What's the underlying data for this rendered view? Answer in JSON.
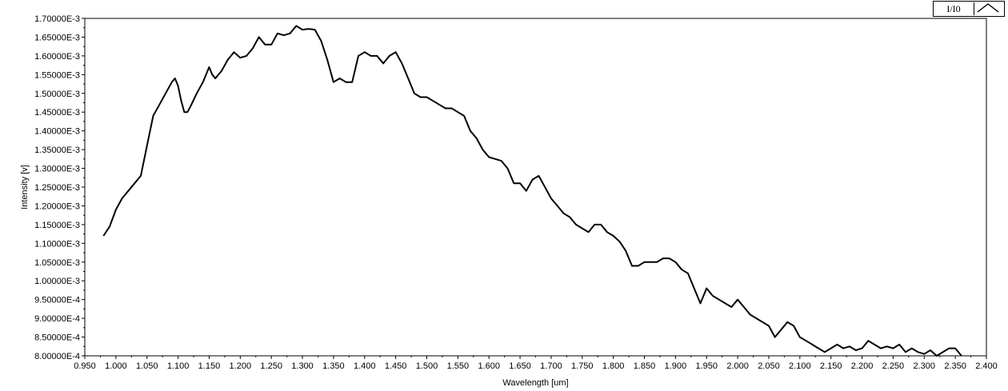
{
  "legend": {
    "series_name": "I/I0"
  },
  "colors": {
    "line": "#000000",
    "plot_background": "#ffffff",
    "frame": "#000000"
  },
  "chart_data": {
    "type": "line",
    "title": "",
    "xlabel": "Wavelength [um]",
    "ylabel": "Intensity [v]",
    "xlim": [
      0.95,
      2.4
    ],
    "ylim": [
      0.0008,
      0.0017
    ],
    "grid": false,
    "legend_position": "top-right",
    "x_ticks": [
      0.95,
      1.0,
      1.05,
      1.1,
      1.15,
      1.2,
      1.25,
      1.3,
      1.35,
      1.4,
      1.45,
      1.5,
      1.55,
      1.6,
      1.65,
      1.7,
      1.75,
      1.8,
      1.85,
      1.9,
      1.95,
      2.0,
      2.05,
      2.1,
      2.15,
      2.2,
      2.25,
      2.3,
      2.35,
      2.4
    ],
    "x_tick_labels": [
      "0.950",
      "1.000",
      "1.050",
      "1.100",
      "1.150",
      "1.200",
      "1.250",
      "1.300",
      "1.350",
      "1.400",
      "1.450",
      "1.500",
      "1.550",
      "1.600",
      "1.650",
      "1.700",
      "1.750",
      "1.800",
      "1.850",
      "1.900",
      "1.950",
      "2.000",
      "2.050",
      "2.100",
      "2.150",
      "2.200",
      "2.250",
      "2.300",
      "2.350",
      "2.400"
    ],
    "y_ticks": [
      0.0008,
      0.00085,
      0.0009,
      0.00095,
      0.001,
      0.00105,
      0.0011,
      0.00115,
      0.0012,
      0.00125,
      0.0013,
      0.00135,
      0.0014,
      0.00145,
      0.0015,
      0.00155,
      0.0016,
      0.00165,
      0.0017
    ],
    "y_tick_labels": [
      "8.00000E-4",
      "8.50000E-4",
      "9.00000E-4",
      "9.50000E-4",
      "1.00000E-3",
      "1.05000E-3",
      "1.10000E-3",
      "1.15000E-3",
      "1.20000E-3",
      "1.25000E-3",
      "1.30000E-3",
      "1.35000E-3",
      "1.40000E-3",
      "1.45000E-3",
      "1.50000E-3",
      "1.55000E-3",
      "1.60000E-3",
      "1.65000E-3",
      "1.70000E-3"
    ],
    "series": [
      {
        "name": "I/I0",
        "x": [
          0.98,
          0.99,
          1.0,
          1.01,
          1.02,
          1.03,
          1.04,
          1.05,
          1.06,
          1.07,
          1.08,
          1.09,
          1.095,
          1.1,
          1.105,
          1.11,
          1.115,
          1.12,
          1.13,
          1.14,
          1.15,
          1.155,
          1.16,
          1.17,
          1.18,
          1.19,
          1.2,
          1.21,
          1.22,
          1.23,
          1.24,
          1.25,
          1.26,
          1.27,
          1.28,
          1.29,
          1.3,
          1.31,
          1.32,
          1.33,
          1.34,
          1.35,
          1.36,
          1.37,
          1.38,
          1.39,
          1.4,
          1.41,
          1.42,
          1.43,
          1.44,
          1.45,
          1.46,
          1.47,
          1.48,
          1.49,
          1.5,
          1.51,
          1.52,
          1.53,
          1.54,
          1.55,
          1.56,
          1.57,
          1.58,
          1.59,
          1.6,
          1.61,
          1.62,
          1.63,
          1.64,
          1.65,
          1.66,
          1.67,
          1.68,
          1.69,
          1.7,
          1.71,
          1.72,
          1.73,
          1.74,
          1.75,
          1.76,
          1.77,
          1.78,
          1.79,
          1.8,
          1.81,
          1.82,
          1.83,
          1.84,
          1.85,
          1.86,
          1.87,
          1.88,
          1.89,
          1.9,
          1.91,
          1.92,
          1.93,
          1.94,
          1.95,
          1.96,
          1.97,
          1.98,
          1.99,
          2.0,
          2.01,
          2.02,
          2.03,
          2.04,
          2.05,
          2.06,
          2.07,
          2.08,
          2.09,
          2.1,
          2.11,
          2.12,
          2.13,
          2.14,
          2.15,
          2.16,
          2.17,
          2.18,
          2.19,
          2.2,
          2.21,
          2.22,
          2.23,
          2.24,
          2.25,
          2.26,
          2.27,
          2.28,
          2.29,
          2.3,
          2.31,
          2.32,
          2.33,
          2.34,
          2.35,
          2.36
        ],
        "y": [
          0.00112,
          0.001145,
          0.00119,
          0.00122,
          0.00124,
          0.00126,
          0.00128,
          0.00136,
          0.00144,
          0.00147,
          0.0015,
          0.00153,
          0.00154,
          0.00152,
          0.00148,
          0.00145,
          0.00145,
          0.001465,
          0.0015,
          0.00153,
          0.00157,
          0.00155,
          0.00154,
          0.00156,
          0.00159,
          0.00161,
          0.001595,
          0.0016,
          0.00162,
          0.00165,
          0.00163,
          0.00163,
          0.00166,
          0.001655,
          0.00166,
          0.00168,
          0.00167,
          0.001672,
          0.00167,
          0.00164,
          0.00159,
          0.00153,
          0.00154,
          0.00153,
          0.00153,
          0.0016,
          0.00161,
          0.0016,
          0.0016,
          0.00158,
          0.0016,
          0.00161,
          0.00158,
          0.00154,
          0.0015,
          0.00149,
          0.00149,
          0.00148,
          0.00147,
          0.00146,
          0.00146,
          0.00145,
          0.00144,
          0.0014,
          0.00138,
          0.00135,
          0.00133,
          0.001325,
          0.00132,
          0.0013,
          0.00126,
          0.00126,
          0.00124,
          0.00127,
          0.00128,
          0.00125,
          0.00122,
          0.0012,
          0.00118,
          0.00117,
          0.00115,
          0.00114,
          0.00113,
          0.00115,
          0.00115,
          0.00113,
          0.00112,
          0.001105,
          0.00108,
          0.00104,
          0.00104,
          0.00105,
          0.00105,
          0.00105,
          0.00106,
          0.00106,
          0.00105,
          0.00103,
          0.00102,
          0.00098,
          0.00094,
          0.00098,
          0.00096,
          0.00095,
          0.00094,
          0.00093,
          0.00095,
          0.00093,
          0.00091,
          0.0009,
          0.00089,
          0.00088,
          0.00085,
          0.00087,
          0.00089,
          0.00088,
          0.00085,
          0.00084,
          0.00083,
          0.00082,
          0.00081,
          0.00082,
          0.00083,
          0.00082,
          0.000825,
          0.000815,
          0.00082,
          0.00084,
          0.00083,
          0.00082,
          0.000825,
          0.00082,
          0.00083,
          0.00081,
          0.00082,
          0.00081,
          0.000805,
          0.000815,
          0.0008,
          0.00081,
          0.00082,
          0.00082,
          0.0008
        ]
      }
    ]
  }
}
